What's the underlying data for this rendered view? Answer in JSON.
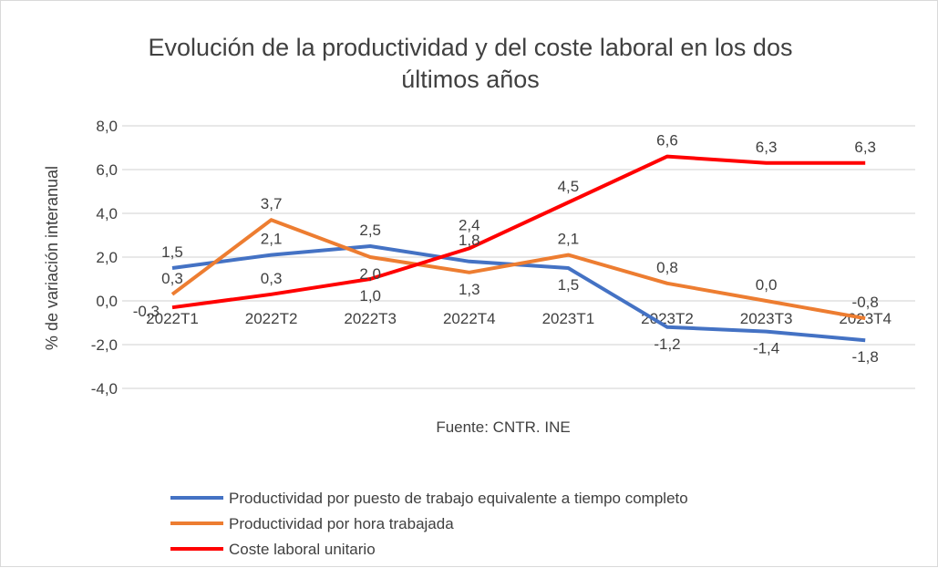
{
  "chart_data": {
    "type": "line",
    "title": "Evolución de la productividad y del coste laboral en los dos últimos años",
    "title_lines": [
      "Evolución de la productividad y del coste laboral en los dos",
      "últimos años"
    ],
    "ylabel": "% de variación interanual",
    "xlabel": "",
    "source": "Fuente: CNTR. INE",
    "ylim": [
      -4,
      8
    ],
    "yticks": [
      "8,0",
      "6,0",
      "4,0",
      "2,0",
      "0,0",
      "-2,0",
      "-4,0"
    ],
    "grid": true,
    "legend_position": "bottom",
    "categories": [
      "2022T1",
      "2022T2",
      "2022T3",
      "2022T4",
      "2023T1",
      "2023T2",
      "2023T3",
      "2023T4"
    ],
    "series": [
      {
        "name": "Productividad por puesto de trabajo equivalente a tiempo completo",
        "color": "#4472c4",
        "values": [
          1.5,
          2.1,
          2.5,
          1.8,
          1.5,
          -1.2,
          -1.4,
          -1.8
        ],
        "labels": [
          "1,5",
          "2,1",
          "2,5",
          "1,8",
          "1,5",
          "-1,2",
          "-1,4",
          "-1,8"
        ]
      },
      {
        "name": "Productividad por hora trabajada",
        "color": "#ed7d31",
        "values": [
          0.3,
          3.7,
          2.0,
          1.3,
          2.1,
          0.8,
          0.0,
          -0.8
        ],
        "labels": [
          "0,3",
          "3,7",
          "2,0",
          "1,3",
          "2,1",
          "0,8",
          "0,0",
          "-0,8"
        ]
      },
      {
        "name": "Coste laboral unitario",
        "color": "#ff0000",
        "values": [
          -0.3,
          0.3,
          1.0,
          2.4,
          4.5,
          6.6,
          6.3,
          6.3
        ],
        "labels": [
          "-0,3",
          "0,3",
          "1,0",
          "2,4",
          "4,5",
          "6,6",
          "6,3",
          "6,3"
        ]
      }
    ]
  }
}
